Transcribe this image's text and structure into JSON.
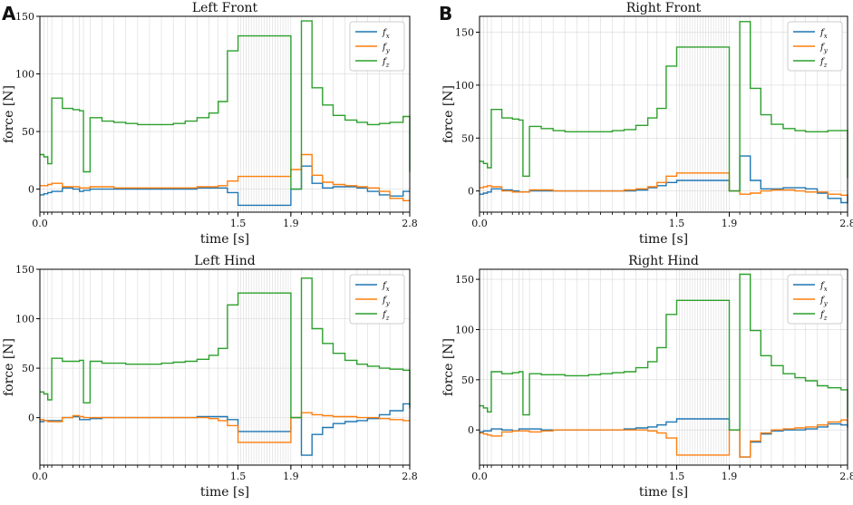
{
  "figure": {
    "panel_letters": [
      "A",
      "B"
    ]
  },
  "colors": {
    "fx": "#1f77b4",
    "fy": "#ff7f0e",
    "fz": "#2ca02c",
    "grid": "#d9d9d9"
  },
  "chart_data": [
    {
      "type": "line",
      "panel": "A",
      "title": "Left Front",
      "xlabel": "time [s]",
      "ylabel": "force [N]",
      "xlim": [
        0,
        2.8
      ],
      "ylim": [
        -20,
        150
      ],
      "xticks": [
        "0.0",
        "1.5",
        "1.9",
        "2.8"
      ],
      "xtick_values": [
        0,
        1.5,
        1.9,
        2.8
      ],
      "yticks": [
        0,
        50,
        100,
        150
      ],
      "x": [
        0,
        0.03,
        0.06,
        0.09,
        0.17,
        0.25,
        0.3,
        0.33,
        0.38,
        0.47,
        0.56,
        0.65,
        0.74,
        0.83,
        0.92,
        1.01,
        1.1,
        1.19,
        1.28,
        1.35,
        1.42,
        1.5,
        1.9,
        1.98,
        2.06,
        2.14,
        2.22,
        2.31,
        2.4,
        2.48,
        2.57,
        2.65,
        2.75,
        2.8
      ],
      "series": [
        {
          "name": "f_x",
          "label": "fx",
          "sub": "x",
          "values": [
            -5,
            -4,
            -3,
            -2,
            1,
            0,
            -2,
            -1,
            0,
            0,
            0,
            0,
            0,
            0,
            0,
            0,
            0,
            1,
            1,
            1,
            -3,
            -14,
            0,
            20,
            5,
            1,
            2,
            2,
            1,
            -2,
            -5,
            -6,
            -2,
            -2
          ]
        },
        {
          "name": "f_y",
          "label": "fy",
          "sub": "y",
          "values": [
            3,
            3,
            4,
            5,
            2,
            2,
            1,
            1,
            2,
            2,
            1,
            1,
            1,
            1,
            1,
            1,
            1,
            2,
            2,
            3,
            7,
            11,
            17,
            30,
            12,
            6,
            4,
            3,
            2,
            1,
            -2,
            -8,
            -10,
            -10
          ]
        },
        {
          "name": "f_z",
          "label": "fz",
          "sub": "z",
          "values": [
            30,
            28,
            22,
            79,
            70,
            69,
            68,
            15,
            62,
            59,
            58,
            57,
            56,
            56,
            56,
            57,
            59,
            62,
            66,
            76,
            120,
            133,
            0,
            146,
            88,
            73,
            64,
            60,
            58,
            56,
            57,
            58,
            63,
            15
          ]
        }
      ]
    },
    {
      "type": "line",
      "panel": "B",
      "title": "Right Front",
      "xlabel": "time [s]",
      "ylabel": "force [N]",
      "xlim": [
        0,
        2.8
      ],
      "ylim": [
        -20,
        165
      ],
      "xticks": [
        "0.0",
        "1.5",
        "1.9",
        "2.8"
      ],
      "xtick_values": [
        0,
        1.5,
        1.9,
        2.8
      ],
      "yticks": [
        0,
        50,
        100,
        150
      ],
      "x": [
        0,
        0.03,
        0.06,
        0.09,
        0.17,
        0.25,
        0.3,
        0.33,
        0.38,
        0.47,
        0.56,
        0.65,
        0.74,
        0.83,
        0.92,
        1.01,
        1.1,
        1.19,
        1.28,
        1.35,
        1.42,
        1.5,
        1.9,
        1.98,
        2.06,
        2.14,
        2.22,
        2.31,
        2.4,
        2.48,
        2.57,
        2.65,
        2.75,
        2.8
      ],
      "series": [
        {
          "name": "f_x",
          "label": "fx",
          "sub": "x",
          "values": [
            -3,
            -2,
            -1,
            2,
            1,
            0,
            -1,
            -1,
            0,
            0,
            0,
            0,
            0,
            0,
            0,
            0,
            0,
            1,
            3,
            5,
            8,
            10,
            0,
            33,
            10,
            2,
            2,
            3,
            3,
            2,
            -2,
            -7,
            -11,
            -3
          ]
        },
        {
          "name": "f_y",
          "label": "fy",
          "sub": "y",
          "values": [
            3,
            4,
            5,
            4,
            0,
            -1,
            -1,
            -1,
            1,
            1,
            0,
            0,
            0,
            0,
            0,
            0,
            1,
            2,
            4,
            8,
            14,
            17,
            0,
            -3,
            -2,
            0,
            1,
            1,
            0,
            -1,
            -1,
            -3,
            -4,
            -4
          ]
        },
        {
          "name": "f_z",
          "label": "fz",
          "sub": "z",
          "values": [
            28,
            26,
            22,
            77,
            69,
            68,
            67,
            14,
            61,
            59,
            57,
            56,
            56,
            56,
            56,
            57,
            58,
            62,
            69,
            78,
            118,
            136,
            0,
            160,
            97,
            72,
            63,
            59,
            57,
            56,
            56,
            57,
            57,
            12
          ]
        }
      ]
    },
    {
      "type": "line",
      "panel": "",
      "title": "Left Hind",
      "xlabel": "time [s]",
      "ylabel": "force [N]",
      "xlim": [
        0,
        2.8
      ],
      "ylim": [
        -48,
        150
      ],
      "xticks": [
        "0.0",
        "1.5",
        "1.9",
        "2.8"
      ],
      "xtick_values": [
        0,
        1.5,
        1.9,
        2.8
      ],
      "yticks": [
        0,
        50,
        100,
        150
      ],
      "x": [
        0,
        0.03,
        0.06,
        0.09,
        0.17,
        0.25,
        0.3,
        0.33,
        0.38,
        0.47,
        0.56,
        0.65,
        0.74,
        0.83,
        0.92,
        1.01,
        1.1,
        1.19,
        1.28,
        1.35,
        1.42,
        1.5,
        1.9,
        1.98,
        2.06,
        2.14,
        2.22,
        2.31,
        2.4,
        2.48,
        2.57,
        2.65,
        2.75,
        2.8
      ],
      "series": [
        {
          "name": "f_x",
          "label": "fx",
          "sub": "x",
          "values": [
            -4,
            -3,
            -3,
            -3,
            0,
            1,
            -2,
            -2,
            -1,
            0,
            0,
            0,
            0,
            0,
            0,
            0,
            0,
            1,
            1,
            1,
            -2,
            -14,
            0,
            -38,
            -17,
            -10,
            -6,
            -4,
            -3,
            -1,
            3,
            7,
            14,
            9
          ]
        },
        {
          "name": "f_y",
          "label": "fy",
          "sub": "y",
          "values": [
            -2,
            -3,
            -4,
            -4,
            0,
            2,
            1,
            0,
            0,
            0,
            0,
            0,
            0,
            0,
            0,
            0,
            0,
            0,
            -1,
            -3,
            -8,
            -25,
            0,
            5,
            3,
            2,
            1,
            1,
            0,
            0,
            -1,
            -2,
            -3,
            -3
          ]
        },
        {
          "name": "f_z",
          "label": "fz",
          "sub": "z",
          "values": [
            26,
            24,
            18,
            60,
            57,
            57,
            58,
            15,
            57,
            55,
            55,
            54,
            54,
            54,
            55,
            56,
            57,
            59,
            63,
            70,
            114,
            126,
            0,
            141,
            90,
            75,
            65,
            58,
            54,
            52,
            50,
            49,
            48,
            12
          ]
        }
      ]
    },
    {
      "type": "line",
      "panel": "",
      "title": "Right Hind",
      "xlabel": "time [s]",
      "ylabel": "force [N]",
      "xlim": [
        0,
        2.8
      ],
      "ylim": [
        -35,
        160
      ],
      "xticks": [
        "0.0",
        "1.5",
        "1.9",
        "2.8"
      ],
      "xtick_values": [
        0,
        1.5,
        1.9,
        2.8
      ],
      "yticks": [
        0,
        50,
        100,
        150
      ],
      "x": [
        0,
        0.03,
        0.06,
        0.09,
        0.17,
        0.25,
        0.3,
        0.33,
        0.38,
        0.47,
        0.56,
        0.65,
        0.74,
        0.83,
        0.92,
        1.01,
        1.1,
        1.19,
        1.28,
        1.35,
        1.42,
        1.5,
        1.9,
        1.98,
        2.06,
        2.14,
        2.22,
        2.31,
        2.4,
        2.48,
        2.57,
        2.65,
        2.75,
        2.8
      ],
      "series": [
        {
          "name": "f_x",
          "label": "fx",
          "sub": "x",
          "values": [
            -2,
            -1,
            -1,
            1,
            0,
            -1,
            1,
            1,
            1,
            0,
            0,
            0,
            0,
            0,
            0,
            0,
            1,
            2,
            3,
            5,
            8,
            11,
            0,
            -27,
            -12,
            -4,
            -1,
            0,
            0,
            1,
            3,
            6,
            5,
            2
          ]
        },
        {
          "name": "f_y",
          "label": "fy",
          "sub": "y",
          "values": [
            -3,
            -4,
            -5,
            -6,
            -2,
            -1,
            -1,
            -1,
            -2,
            -1,
            0,
            0,
            0,
            0,
            0,
            0,
            0,
            0,
            -1,
            -3,
            -8,
            -25,
            0,
            -27,
            -11,
            -3,
            0,
            1,
            2,
            3,
            5,
            8,
            10,
            4
          ]
        },
        {
          "name": "f_z",
          "label": "fz",
          "sub": "z",
          "values": [
            24,
            22,
            18,
            58,
            56,
            57,
            58,
            15,
            56,
            55,
            55,
            54,
            54,
            55,
            56,
            57,
            58,
            62,
            68,
            82,
            115,
            129,
            0,
            155,
            99,
            74,
            64,
            56,
            52,
            49,
            44,
            42,
            40,
            12
          ]
        }
      ]
    }
  ]
}
